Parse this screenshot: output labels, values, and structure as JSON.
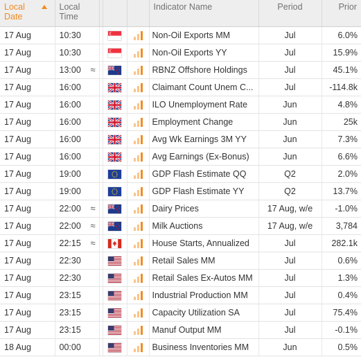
{
  "header": {
    "date": "Local Date",
    "time": "Local Time",
    "indicator": "Indicator Name",
    "period": "Period",
    "prior": "Prior"
  },
  "colors": {
    "accent": "#f28b22",
    "impact_low": "#f9c48a"
  },
  "rows": [
    {
      "date": "17 Aug",
      "time": "10:30",
      "approx": "",
      "flag": "singapore-flag-icon",
      "name": "Non-Oil Exports MM",
      "period": "Jul",
      "prior": "6.0%"
    },
    {
      "date": "17 Aug",
      "time": "10:30",
      "approx": "",
      "flag": "singapore-flag-icon",
      "name": "Non-Oil Exports YY",
      "period": "Jul",
      "prior": "15.9%"
    },
    {
      "date": "17 Aug",
      "time": "13:00",
      "approx": "≈",
      "flag": "new-zealand-flag-icon",
      "name": "RBNZ Offshore Holdings",
      "period": "Jul",
      "prior": "45.1%"
    },
    {
      "date": "17 Aug",
      "time": "16:00",
      "approx": "",
      "flag": "uk-flag-icon",
      "name": "Claimant Count Unem C...",
      "period": "Jul",
      "prior": "-114.8k"
    },
    {
      "date": "17 Aug",
      "time": "16:00",
      "approx": "",
      "flag": "uk-flag-icon",
      "name": "ILO Unemployment Rate",
      "period": "Jun",
      "prior": "4.8%"
    },
    {
      "date": "17 Aug",
      "time": "16:00",
      "approx": "",
      "flag": "uk-flag-icon",
      "name": "Employment Change",
      "period": "Jun",
      "prior": "25k"
    },
    {
      "date": "17 Aug",
      "time": "16:00",
      "approx": "",
      "flag": "uk-flag-icon",
      "name": "Avg Wk Earnings 3M YY",
      "period": "Jun",
      "prior": "7.3%"
    },
    {
      "date": "17 Aug",
      "time": "16:00",
      "approx": "",
      "flag": "uk-flag-icon",
      "name": "Avg Earnings (Ex-Bonus)",
      "period": "Jun",
      "prior": "6.6%"
    },
    {
      "date": "17 Aug",
      "time": "19:00",
      "approx": "",
      "flag": "eu-flag-icon",
      "name": "GDP Flash Estimate QQ",
      "period": "Q2",
      "prior": "2.0%"
    },
    {
      "date": "17 Aug",
      "time": "19:00",
      "approx": "",
      "flag": "eu-flag-icon",
      "name": "GDP Flash Estimate YY",
      "period": "Q2",
      "prior": "13.7%"
    },
    {
      "date": "17 Aug",
      "time": "22:00",
      "approx": "≈",
      "flag": "new-zealand-flag-icon",
      "name": "Dairy Prices",
      "period": "17 Aug, w/e",
      "prior": "-1.0%"
    },
    {
      "date": "17 Aug",
      "time": "22:00",
      "approx": "≈",
      "flag": "new-zealand-flag-icon",
      "name": "Milk Auctions",
      "period": "17 Aug, w/e",
      "prior": "3,784"
    },
    {
      "date": "17 Aug",
      "time": "22:15",
      "approx": "≈",
      "flag": "canada-flag-icon",
      "name": "House Starts, Annualized",
      "period": "Jul",
      "prior": "282.1k"
    },
    {
      "date": "17 Aug",
      "time": "22:30",
      "approx": "",
      "flag": "us-flag-icon",
      "name": "Retail Sales MM",
      "period": "Jul",
      "prior": "0.6%"
    },
    {
      "date": "17 Aug",
      "time": "22:30",
      "approx": "",
      "flag": "us-flag-icon",
      "name": "Retail Sales Ex-Autos MM",
      "period": "Jul",
      "prior": "1.3%"
    },
    {
      "date": "17 Aug",
      "time": "23:15",
      "approx": "",
      "flag": "us-flag-icon",
      "name": "Industrial Production MM",
      "period": "Jul",
      "prior": "0.4%"
    },
    {
      "date": "17 Aug",
      "time": "23:15",
      "approx": "",
      "flag": "us-flag-icon",
      "name": "Capacity Utilization SA",
      "period": "Jul",
      "prior": "75.4%"
    },
    {
      "date": "17 Aug",
      "time": "23:15",
      "approx": "",
      "flag": "us-flag-icon",
      "name": "Manuf Output MM",
      "period": "Jul",
      "prior": "-0.1%"
    },
    {
      "date": "18 Aug",
      "time": "00:00",
      "approx": "",
      "flag": "us-flag-icon",
      "name": "Business Inventories MM",
      "period": "Jun",
      "prior": "0.5%"
    }
  ]
}
